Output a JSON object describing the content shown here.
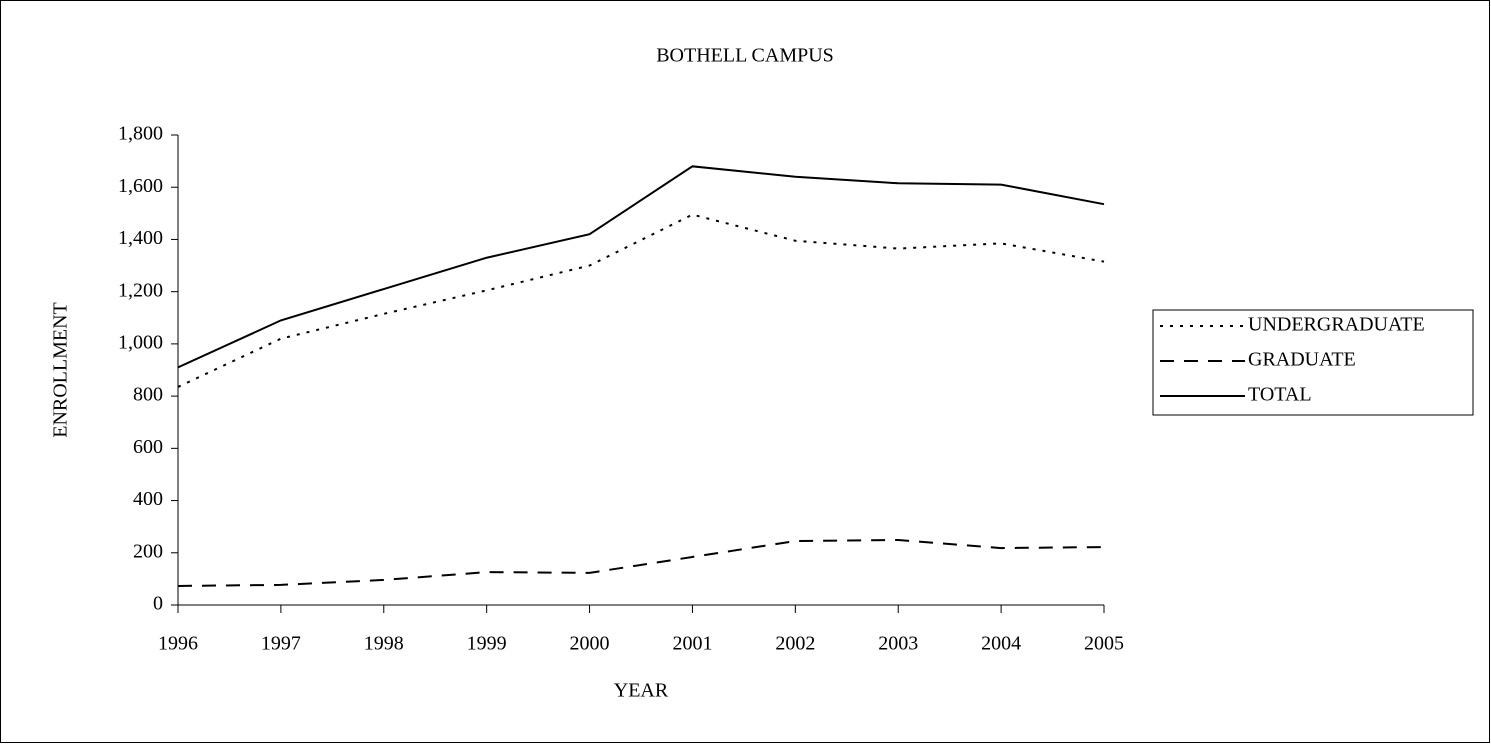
{
  "chart_data": {
    "type": "line",
    "title": "BOTHELL CAMPUS",
    "xlabel": "YEAR",
    "ylabel": "ENROLLMENT",
    "x": [
      1996,
      1997,
      1998,
      1999,
      2000,
      2001,
      2002,
      2003,
      2004,
      2005
    ],
    "xlim": [
      1996,
      2005
    ],
    "xticks": [
      1996,
      1997,
      1998,
      1999,
      2000,
      2001,
      2002,
      2003,
      2004,
      2005
    ],
    "ylim": [
      0,
      1800
    ],
    "yticks": [
      0,
      200,
      400,
      600,
      800,
      {
        "value": 1000,
        "label": "1,000"
      },
      {
        "value": 1200,
        "label": "1,200"
      },
      {
        "value": 1400,
        "label": "1,400"
      },
      {
        "value": 1600,
        "label": "1,600"
      },
      {
        "value": 1800,
        "label": "1,800"
      }
    ],
    "grid": false,
    "legend": "right",
    "series": [
      {
        "name": "UNDERGRADUATE",
        "color": "#000000",
        "dash": "dotted",
        "values": [
          835,
          1020,
          1115,
          1205,
          1300,
          1495,
          1395,
          1365,
          1385,
          1315
        ]
      },
      {
        "name": "GRADUATE",
        "color": "#000000",
        "dash": "dashed",
        "values": [
          73,
          77,
          96,
          126,
          123,
          184,
          245,
          249,
          218,
          222
        ]
      },
      {
        "name": "TOTAL",
        "color": "#000000",
        "dash": "solid",
        "values": [
          910,
          1090,
          1210,
          1330,
          1420,
          1680,
          1640,
          1615,
          1610,
          1535
        ]
      }
    ]
  }
}
